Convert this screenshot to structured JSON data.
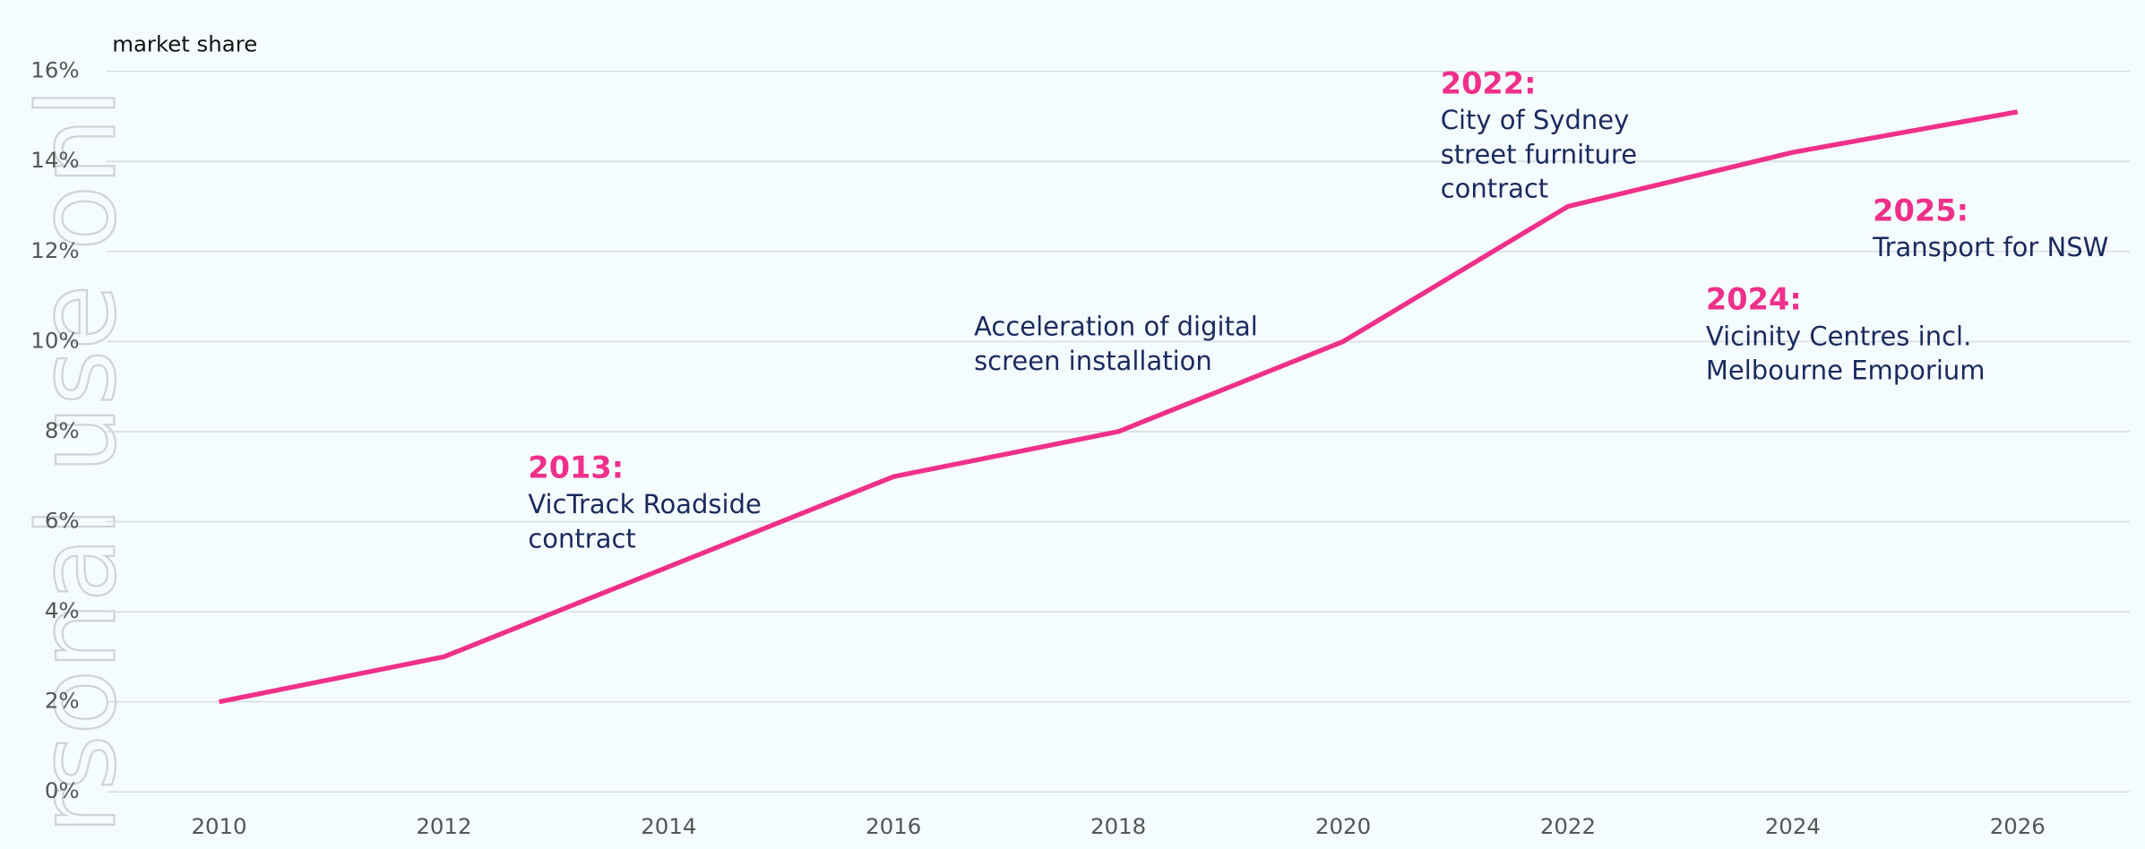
{
  "chart_data": {
    "type": "line",
    "y_label": "market share",
    "watermark": "rsonal use onl",
    "x": [
      2010,
      2012,
      2016,
      2018,
      2020,
      2022,
      2024,
      2026
    ],
    "values": [
      2,
      3,
      7,
      8,
      10,
      13,
      14.2,
      15.1
    ],
    "color": "#f0308a",
    "xlim": [
      2009,
      2027
    ],
    "xticks": [
      2010,
      2012,
      2014,
      2016,
      2018,
      2020,
      2022,
      2024,
      2026
    ],
    "ylim": [
      0,
      16
    ],
    "yticks": [
      {
        "value": 0,
        "label": "0%"
      },
      {
        "value": 2,
        "label": "2%"
      },
      {
        "value": 4,
        "label": "4%"
      },
      {
        "value": 6,
        "label": "6%"
      },
      {
        "value": 8,
        "label": "8%"
      },
      {
        "value": 10,
        "label": "10%"
      },
      {
        "value": 12,
        "label": "12%"
      },
      {
        "value": 14,
        "label": "14%"
      },
      {
        "value": 16,
        "label": "16%"
      }
    ],
    "grid": true,
    "annotations": [
      {
        "heading": "2013:",
        "lines": [
          "VicTrack Roadside",
          "contract"
        ]
      },
      {
        "lines": [
          "Acceleration of digital",
          "screen installation"
        ]
      },
      {
        "heading": "2022:",
        "lines": [
          "City of Sydney",
          "street furniture",
          "contract"
        ]
      },
      {
        "heading": "2025:",
        "lines": [
          "Transport for NSW"
        ]
      },
      {
        "heading": "2024:",
        "lines": [
          "Vicinity Centres incl.",
          "Melbourne Emporium"
        ]
      }
    ]
  }
}
